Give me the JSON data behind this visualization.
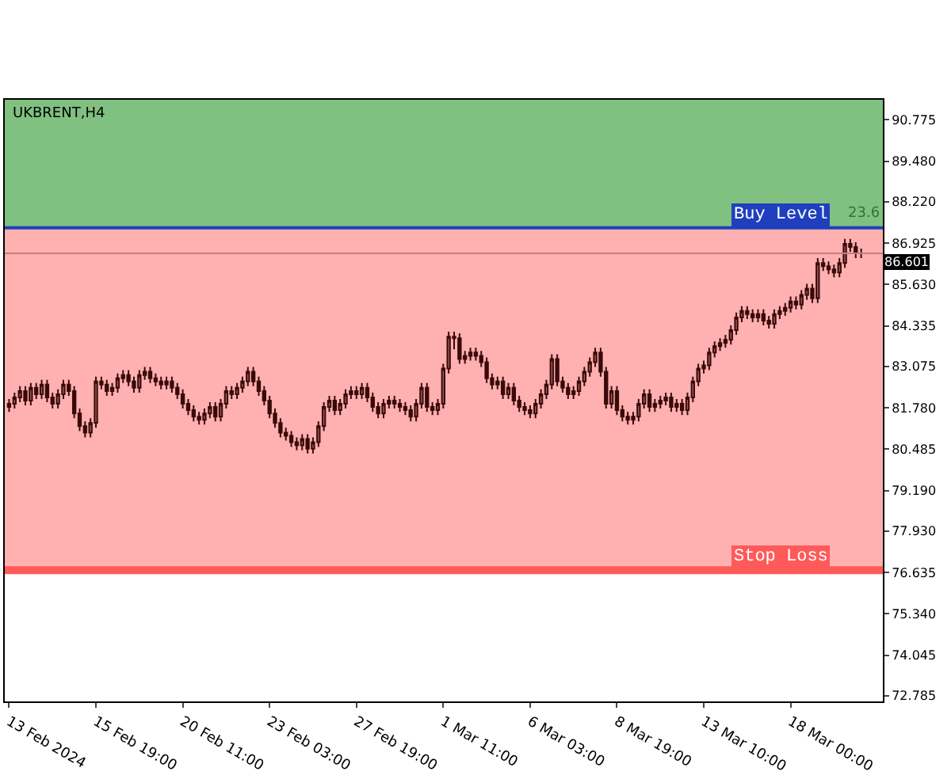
{
  "chart_data": {
    "type": "candlestick",
    "title": "UKBRENT,H4",
    "categories": [
      "13 Feb 2024",
      null,
      null,
      null,
      null,
      null,
      null,
      null,
      null,
      null,
      null,
      null,
      null,
      null,
      null,
      null,
      "15 Feb 19:00",
      null,
      null,
      null,
      null,
      null,
      null,
      null,
      null,
      null,
      null,
      null,
      null,
      null,
      null,
      null,
      "20 Feb 11:00",
      null,
      null,
      null,
      null,
      null,
      null,
      null,
      null,
      null,
      null,
      null,
      null,
      null,
      null,
      null,
      "23 Feb 03:00",
      null,
      null,
      null,
      null,
      null,
      null,
      null,
      null,
      null,
      null,
      null,
      null,
      null,
      null,
      null,
      "27 Feb 19:00",
      null,
      null,
      null,
      null,
      null,
      null,
      null,
      null,
      null,
      null,
      null,
      null,
      null,
      null,
      null,
      "1 Mar 11:00",
      null,
      null,
      null,
      null,
      null,
      null,
      null,
      null,
      null,
      null,
      null,
      null,
      null,
      null,
      null,
      "6 Mar 03:00",
      null,
      null,
      null,
      null,
      null,
      null,
      null,
      null,
      null,
      null,
      null,
      null,
      null,
      null,
      null,
      "8 Mar 19:00",
      null,
      null,
      null,
      null,
      null,
      null,
      null,
      null,
      null,
      null,
      null,
      null,
      null,
      null,
      null,
      "13 Mar 10:00",
      null,
      null,
      null,
      null,
      null,
      null,
      null,
      null,
      null,
      null,
      null,
      null,
      null,
      null,
      null,
      "18 Mar 00:00",
      null,
      null,
      null,
      null,
      null,
      null,
      null,
      null,
      null,
      null,
      null,
      null,
      null
    ],
    "color": "#3a0a0a",
    "ohlc": [
      [
        81.8,
        82.05,
        81.65,
        81.9
      ],
      [
        81.9,
        82.25,
        81.75,
        82.1
      ],
      [
        82.1,
        82.45,
        81.95,
        82.3
      ],
      [
        82.3,
        82.45,
        81.85,
        82.0
      ],
      [
        82.0,
        82.55,
        81.85,
        82.4
      ],
      [
        82.4,
        82.55,
        82.05,
        82.2
      ],
      [
        82.2,
        82.65,
        82.05,
        82.5
      ],
      [
        82.5,
        82.65,
        81.95,
        82.1
      ],
      [
        82.1,
        82.25,
        81.75,
        81.9
      ],
      [
        81.9,
        82.35,
        81.75,
        82.2
      ],
      [
        82.2,
        82.65,
        82.05,
        82.5
      ],
      [
        82.5,
        82.65,
        82.15,
        82.3
      ],
      [
        82.3,
        82.45,
        81.45,
        81.6
      ],
      [
        81.6,
        81.75,
        81.05,
        81.2
      ],
      [
        81.2,
        81.35,
        80.85,
        81.0
      ],
      [
        81.0,
        81.45,
        80.85,
        81.3
      ],
      [
        81.3,
        82.75,
        81.15,
        82.6
      ],
      [
        82.6,
        82.75,
        82.35,
        82.5
      ],
      [
        82.5,
        82.65,
        82.15,
        82.3
      ],
      [
        82.3,
        82.55,
        82.15,
        82.4
      ],
      [
        82.4,
        82.85,
        82.25,
        82.7
      ],
      [
        82.7,
        82.95,
        82.55,
        82.8
      ],
      [
        82.8,
        82.95,
        82.45,
        82.6
      ],
      [
        82.6,
        82.75,
        82.25,
        82.4
      ],
      [
        82.4,
        82.95,
        82.25,
        82.8
      ],
      [
        82.8,
        83.05,
        82.65,
        82.9
      ],
      [
        82.9,
        83.05,
        82.55,
        82.7
      ],
      [
        82.7,
        82.85,
        82.45,
        82.6
      ],
      [
        82.6,
        82.75,
        82.35,
        82.5
      ],
      [
        82.5,
        82.75,
        82.35,
        82.6
      ],
      [
        82.6,
        82.75,
        82.25,
        82.4
      ],
      [
        82.4,
        82.55,
        82.05,
        82.2
      ],
      [
        82.2,
        82.35,
        81.75,
        81.9
      ],
      [
        81.9,
        82.05,
        81.55,
        81.7
      ],
      [
        81.7,
        81.85,
        81.35,
        81.5
      ],
      [
        81.5,
        81.65,
        81.25,
        81.4
      ],
      [
        81.4,
        81.75,
        81.25,
        81.6
      ],
      [
        81.6,
        81.95,
        81.45,
        81.8
      ],
      [
        81.8,
        81.95,
        81.35,
        81.5
      ],
      [
        81.5,
        82.05,
        81.35,
        81.9
      ],
      [
        81.9,
        82.45,
        81.75,
        82.3
      ],
      [
        82.3,
        82.45,
        82.05,
        82.2
      ],
      [
        82.2,
        82.55,
        82.05,
        82.4
      ],
      [
        82.4,
        82.75,
        82.25,
        82.6
      ],
      [
        82.6,
        83.05,
        82.45,
        82.9
      ],
      [
        82.9,
        83.05,
        82.45,
        82.6
      ],
      [
        82.6,
        82.75,
        82.15,
        82.3
      ],
      [
        82.3,
        82.45,
        81.85,
        82.0
      ],
      [
        82.0,
        82.15,
        81.45,
        81.6
      ],
      [
        81.6,
        81.75,
        81.15,
        81.3
      ],
      [
        81.3,
        81.45,
        80.85,
        81.0
      ],
      [
        81.0,
        81.15,
        80.75,
        80.9
      ],
      [
        80.9,
        81.05,
        80.55,
        80.7
      ],
      [
        80.7,
        80.85,
        80.45,
        80.6
      ],
      [
        80.6,
        80.95,
        80.45,
        80.8
      ],
      [
        80.8,
        80.95,
        80.35,
        80.5
      ],
      [
        80.5,
        80.85,
        80.35,
        80.7
      ],
      [
        80.7,
        81.35,
        80.55,
        81.2
      ],
      [
        81.2,
        81.95,
        81.05,
        81.8
      ],
      [
        81.8,
        82.15,
        81.65,
        82.0
      ],
      [
        82.0,
        82.15,
        81.55,
        81.7
      ],
      [
        81.7,
        82.05,
        81.55,
        81.9
      ],
      [
        81.9,
        82.35,
        81.75,
        82.2
      ],
      [
        82.2,
        82.45,
        82.05,
        82.3
      ],
      [
        82.3,
        82.45,
        82.05,
        82.2
      ],
      [
        82.2,
        82.55,
        82.05,
        82.4
      ],
      [
        82.4,
        82.55,
        81.95,
        82.1
      ],
      [
        82.1,
        82.25,
        81.65,
        81.8
      ],
      [
        81.8,
        81.95,
        81.45,
        81.6
      ],
      [
        81.6,
        82.05,
        81.45,
        81.9
      ],
      [
        81.9,
        82.15,
        81.75,
        82.0
      ],
      [
        82.0,
        82.15,
        81.75,
        81.9
      ],
      [
        81.9,
        82.05,
        81.65,
        81.8
      ],
      [
        81.8,
        81.95,
        81.55,
        81.7
      ],
      [
        81.7,
        81.85,
        81.35,
        81.5
      ],
      [
        81.5,
        82.05,
        81.35,
        81.9
      ],
      [
        81.9,
        82.55,
        81.75,
        82.4
      ],
      [
        82.4,
        82.55,
        81.65,
        81.8
      ],
      [
        81.8,
        81.95,
        81.55,
        81.7
      ],
      [
        81.7,
        82.05,
        81.55,
        81.9
      ],
      [
        81.9,
        83.15,
        81.75,
        83.0
      ],
      [
        83.0,
        84.15,
        82.85,
        84.0
      ],
      [
        84.0,
        84.15,
        83.6,
        83.95
      ],
      [
        83.95,
        84.1,
        83.15,
        83.3
      ],
      [
        83.3,
        83.55,
        83.15,
        83.4
      ],
      [
        83.4,
        83.65,
        83.25,
        83.5
      ],
      [
        83.5,
        83.65,
        83.25,
        83.4
      ],
      [
        83.4,
        83.55,
        83.05,
        83.2
      ],
      [
        83.2,
        83.35,
        82.55,
        82.7
      ],
      [
        82.7,
        82.85,
        82.35,
        82.5
      ],
      [
        82.5,
        82.75,
        82.35,
        82.6
      ],
      [
        82.6,
        82.75,
        82.05,
        82.2
      ],
      [
        82.2,
        82.55,
        82.05,
        82.4
      ],
      [
        82.4,
        82.55,
        81.85,
        82.0
      ],
      [
        82.0,
        82.15,
        81.65,
        81.8
      ],
      [
        81.8,
        81.95,
        81.55,
        81.7
      ],
      [
        81.7,
        81.85,
        81.45,
        81.6
      ],
      [
        81.6,
        82.05,
        81.45,
        81.9
      ],
      [
        81.9,
        82.35,
        81.75,
        82.2
      ],
      [
        82.2,
        82.65,
        82.05,
        82.5
      ],
      [
        82.5,
        83.45,
        82.35,
        83.3
      ],
      [
        83.3,
        83.45,
        82.45,
        82.6
      ],
      [
        82.6,
        82.75,
        82.25,
        82.4
      ],
      [
        82.4,
        82.55,
        82.05,
        82.2
      ],
      [
        82.2,
        82.45,
        82.05,
        82.3
      ],
      [
        82.3,
        82.75,
        82.15,
        82.6
      ],
      [
        82.6,
        83.05,
        82.45,
        82.9
      ],
      [
        82.9,
        83.35,
        82.75,
        83.2
      ],
      [
        83.2,
        83.65,
        83.05,
        83.5
      ],
      [
        83.5,
        83.65,
        82.75,
        82.9
      ],
      [
        82.9,
        83.05,
        81.75,
        81.9
      ],
      [
        81.9,
        82.45,
        81.75,
        82.3
      ],
      [
        82.3,
        82.45,
        81.55,
        81.7
      ],
      [
        81.7,
        81.85,
        81.35,
        81.5
      ],
      [
        81.5,
        81.65,
        81.25,
        81.4
      ],
      [
        81.4,
        81.65,
        81.25,
        81.5
      ],
      [
        81.5,
        82.05,
        81.35,
        81.9
      ],
      [
        81.9,
        82.35,
        81.75,
        82.2
      ],
      [
        82.2,
        82.35,
        81.65,
        81.8
      ],
      [
        81.8,
        82.05,
        81.65,
        81.9
      ],
      [
        81.9,
        82.15,
        81.75,
        82.0
      ],
      [
        82.0,
        82.25,
        81.85,
        82.1
      ],
      [
        82.1,
        82.25,
        81.65,
        81.8
      ],
      [
        81.8,
        82.05,
        81.65,
        81.9
      ],
      [
        81.9,
        82.05,
        81.55,
        81.7
      ],
      [
        81.7,
        82.25,
        81.55,
        82.1
      ],
      [
        82.1,
        82.75,
        81.95,
        82.6
      ],
      [
        82.6,
        83.15,
        82.45,
        83.0
      ],
      [
        83.0,
        83.25,
        82.85,
        83.1
      ],
      [
        83.1,
        83.65,
        82.95,
        83.5
      ],
      [
        83.5,
        83.85,
        83.35,
        83.7
      ],
      [
        83.7,
        83.95,
        83.55,
        83.8
      ],
      [
        83.8,
        84.05,
        83.65,
        83.9
      ],
      [
        83.9,
        84.35,
        83.75,
        84.2
      ],
      [
        84.2,
        84.75,
        84.05,
        84.6
      ],
      [
        84.6,
        84.95,
        84.45,
        84.8
      ],
      [
        84.8,
        84.95,
        84.55,
        84.7
      ],
      [
        84.7,
        84.85,
        84.45,
        84.6
      ],
      [
        84.6,
        84.85,
        84.45,
        84.7
      ],
      [
        84.7,
        84.85,
        84.35,
        84.5
      ],
      [
        84.5,
        84.65,
        84.25,
        84.4
      ],
      [
        84.4,
        84.85,
        84.25,
        84.7
      ],
      [
        84.7,
        84.95,
        84.55,
        84.8
      ],
      [
        84.8,
        85.05,
        84.65,
        84.9
      ],
      [
        84.9,
        85.25,
        84.75,
        85.1
      ],
      [
        85.1,
        85.25,
        84.85,
        85.0
      ],
      [
        85.0,
        85.45,
        84.85,
        85.3
      ],
      [
        85.3,
        85.65,
        85.15,
        85.5
      ],
      [
        85.5,
        85.65,
        85.05,
        85.2
      ],
      [
        85.2,
        86.45,
        85.05,
        86.3
      ],
      [
        86.3,
        86.45,
        86.05,
        86.2
      ],
      [
        86.2,
        86.35,
        85.95,
        86.1
      ],
      [
        86.1,
        86.25,
        85.85,
        86.0
      ],
      [
        86.0,
        86.45,
        85.85,
        86.3
      ],
      [
        86.3,
        87.05,
        86.15,
        86.9
      ],
      [
        86.9,
        87.05,
        86.65,
        86.8
      ],
      [
        86.8,
        86.95,
        86.45,
        86.6
      ],
      [
        86.6,
        86.75,
        86.45,
        86.601
      ]
    ],
    "ylim": [
      72.6,
      91.4
    ],
    "yticks": [
      72.785,
      74.045,
      {
        "value": 75.34,
        "label": "75.340"
      },
      76.635,
      {
        "value": 77.93,
        "label": "77.930"
      },
      {
        "value": 79.19,
        "label": "79.190"
      },
      80.485,
      {
        "value": 81.78,
        "label": "81.780"
      },
      83.075,
      84.335,
      {
        "value": 85.63,
        "label": "85.630"
      },
      86.925,
      {
        "value": 88.22,
        "label": "88.220"
      },
      {
        "value": 89.48,
        "label": "89.480"
      },
      90.775
    ],
    "bands": [
      {
        "axis": "y",
        "from": 87.4,
        "to": 91.4,
        "color": "#80c080"
      },
      {
        "axis": "y",
        "from": 76.8,
        "to": 87.4,
        "color": "#ffb0b0"
      }
    ],
    "ref_lines": [
      {
        "axis": "y",
        "value": 87.4,
        "label": "Buy Level",
        "color": "#1f3fbf"
      },
      {
        "axis": "y",
        "value": 76.7,
        "label": "Stop Loss",
        "color": "#ff5a5a"
      },
      {
        "axis": "y",
        "value": 86.601,
        "label": "86.601",
        "color": "#c08080"
      }
    ],
    "annotations": [
      {
        "text": "23.6",
        "y": 87.4
      }
    ],
    "grid": false,
    "legend": false
  }
}
